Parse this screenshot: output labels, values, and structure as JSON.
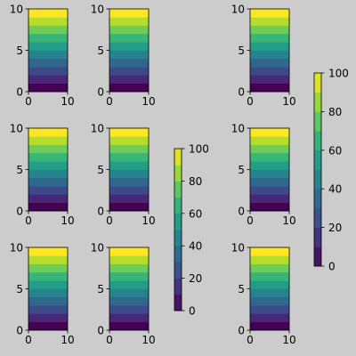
{
  "chart_data": {
    "type": "heatmap",
    "colormap": "viridis",
    "background": "#cccccc",
    "subplot_grid": {
      "rows": 3,
      "cols": 3
    },
    "panels": [
      {
        "row": 0,
        "col": 0
      },
      {
        "row": 0,
        "col": 1
      },
      {
        "row": 0,
        "col": 2
      },
      {
        "row": 1,
        "col": 0
      },
      {
        "row": 1,
        "col": 1
      },
      {
        "row": 1,
        "col": 2
      },
      {
        "row": 2,
        "col": 0
      },
      {
        "row": 2,
        "col": 1
      },
      {
        "row": 2,
        "col": 2
      }
    ],
    "xlim": [
      0,
      10
    ],
    "ylim": [
      0,
      10
    ],
    "x_ticks": [
      "0",
      "10"
    ],
    "y_ticks": [
      "0",
      "5",
      "10"
    ],
    "data": {
      "description_rows": 10,
      "row_values": [
        0,
        11.1,
        22.2,
        33.3,
        44.4,
        55.6,
        66.7,
        77.8,
        88.9,
        100
      ]
    },
    "colorbars": [
      {
        "placement": "between-columns-1-2-rows-1-2",
        "range": [
          0,
          100
        ],
        "ticks": [
          "0",
          "20",
          "40",
          "60",
          "80",
          "100"
        ]
      },
      {
        "placement": "right-of-column-2-rows-0-1",
        "range": [
          0,
          100
        ],
        "ticks": [
          "0",
          "20",
          "40",
          "60",
          "80",
          "100"
        ]
      }
    ]
  }
}
